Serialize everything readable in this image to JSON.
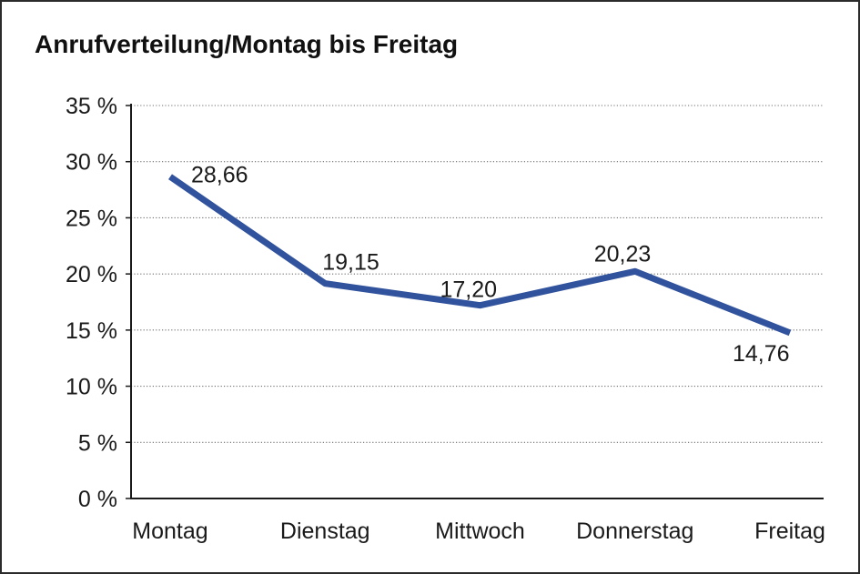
{
  "window": {
    "background": "#ffffff",
    "border_color": "#2b2b2b"
  },
  "chart_data": {
    "type": "line",
    "title": "Anrufverteilung/Montag bis Freitag",
    "categories": [
      "Montag",
      "Dienstag",
      "Mittwoch",
      "Donnerstag",
      "Freitag"
    ],
    "series": [
      {
        "name": "Anrufverteilung",
        "values": [
          28.66,
          19.15,
          17.2,
          20.23,
          14.76
        ]
      }
    ],
    "point_labels": [
      "28,66",
      "19,15",
      "17,20",
      "20,23",
      "14,76"
    ],
    "xlabel": "",
    "ylabel": "",
    "ylim": [
      0,
      35
    ],
    "ytick_step": 5,
    "ytick_labels": [
      "0 %",
      "5 %",
      "10 %",
      "15 %",
      "20 %",
      "25 %",
      "30 %",
      "35 %"
    ],
    "grid": "horizontal-dotted",
    "legend": "none",
    "colors": {
      "line": "#31529D",
      "text": "#1a1a1a",
      "axis": "#1a1a1a",
      "grid": "#6e6e6e"
    }
  }
}
